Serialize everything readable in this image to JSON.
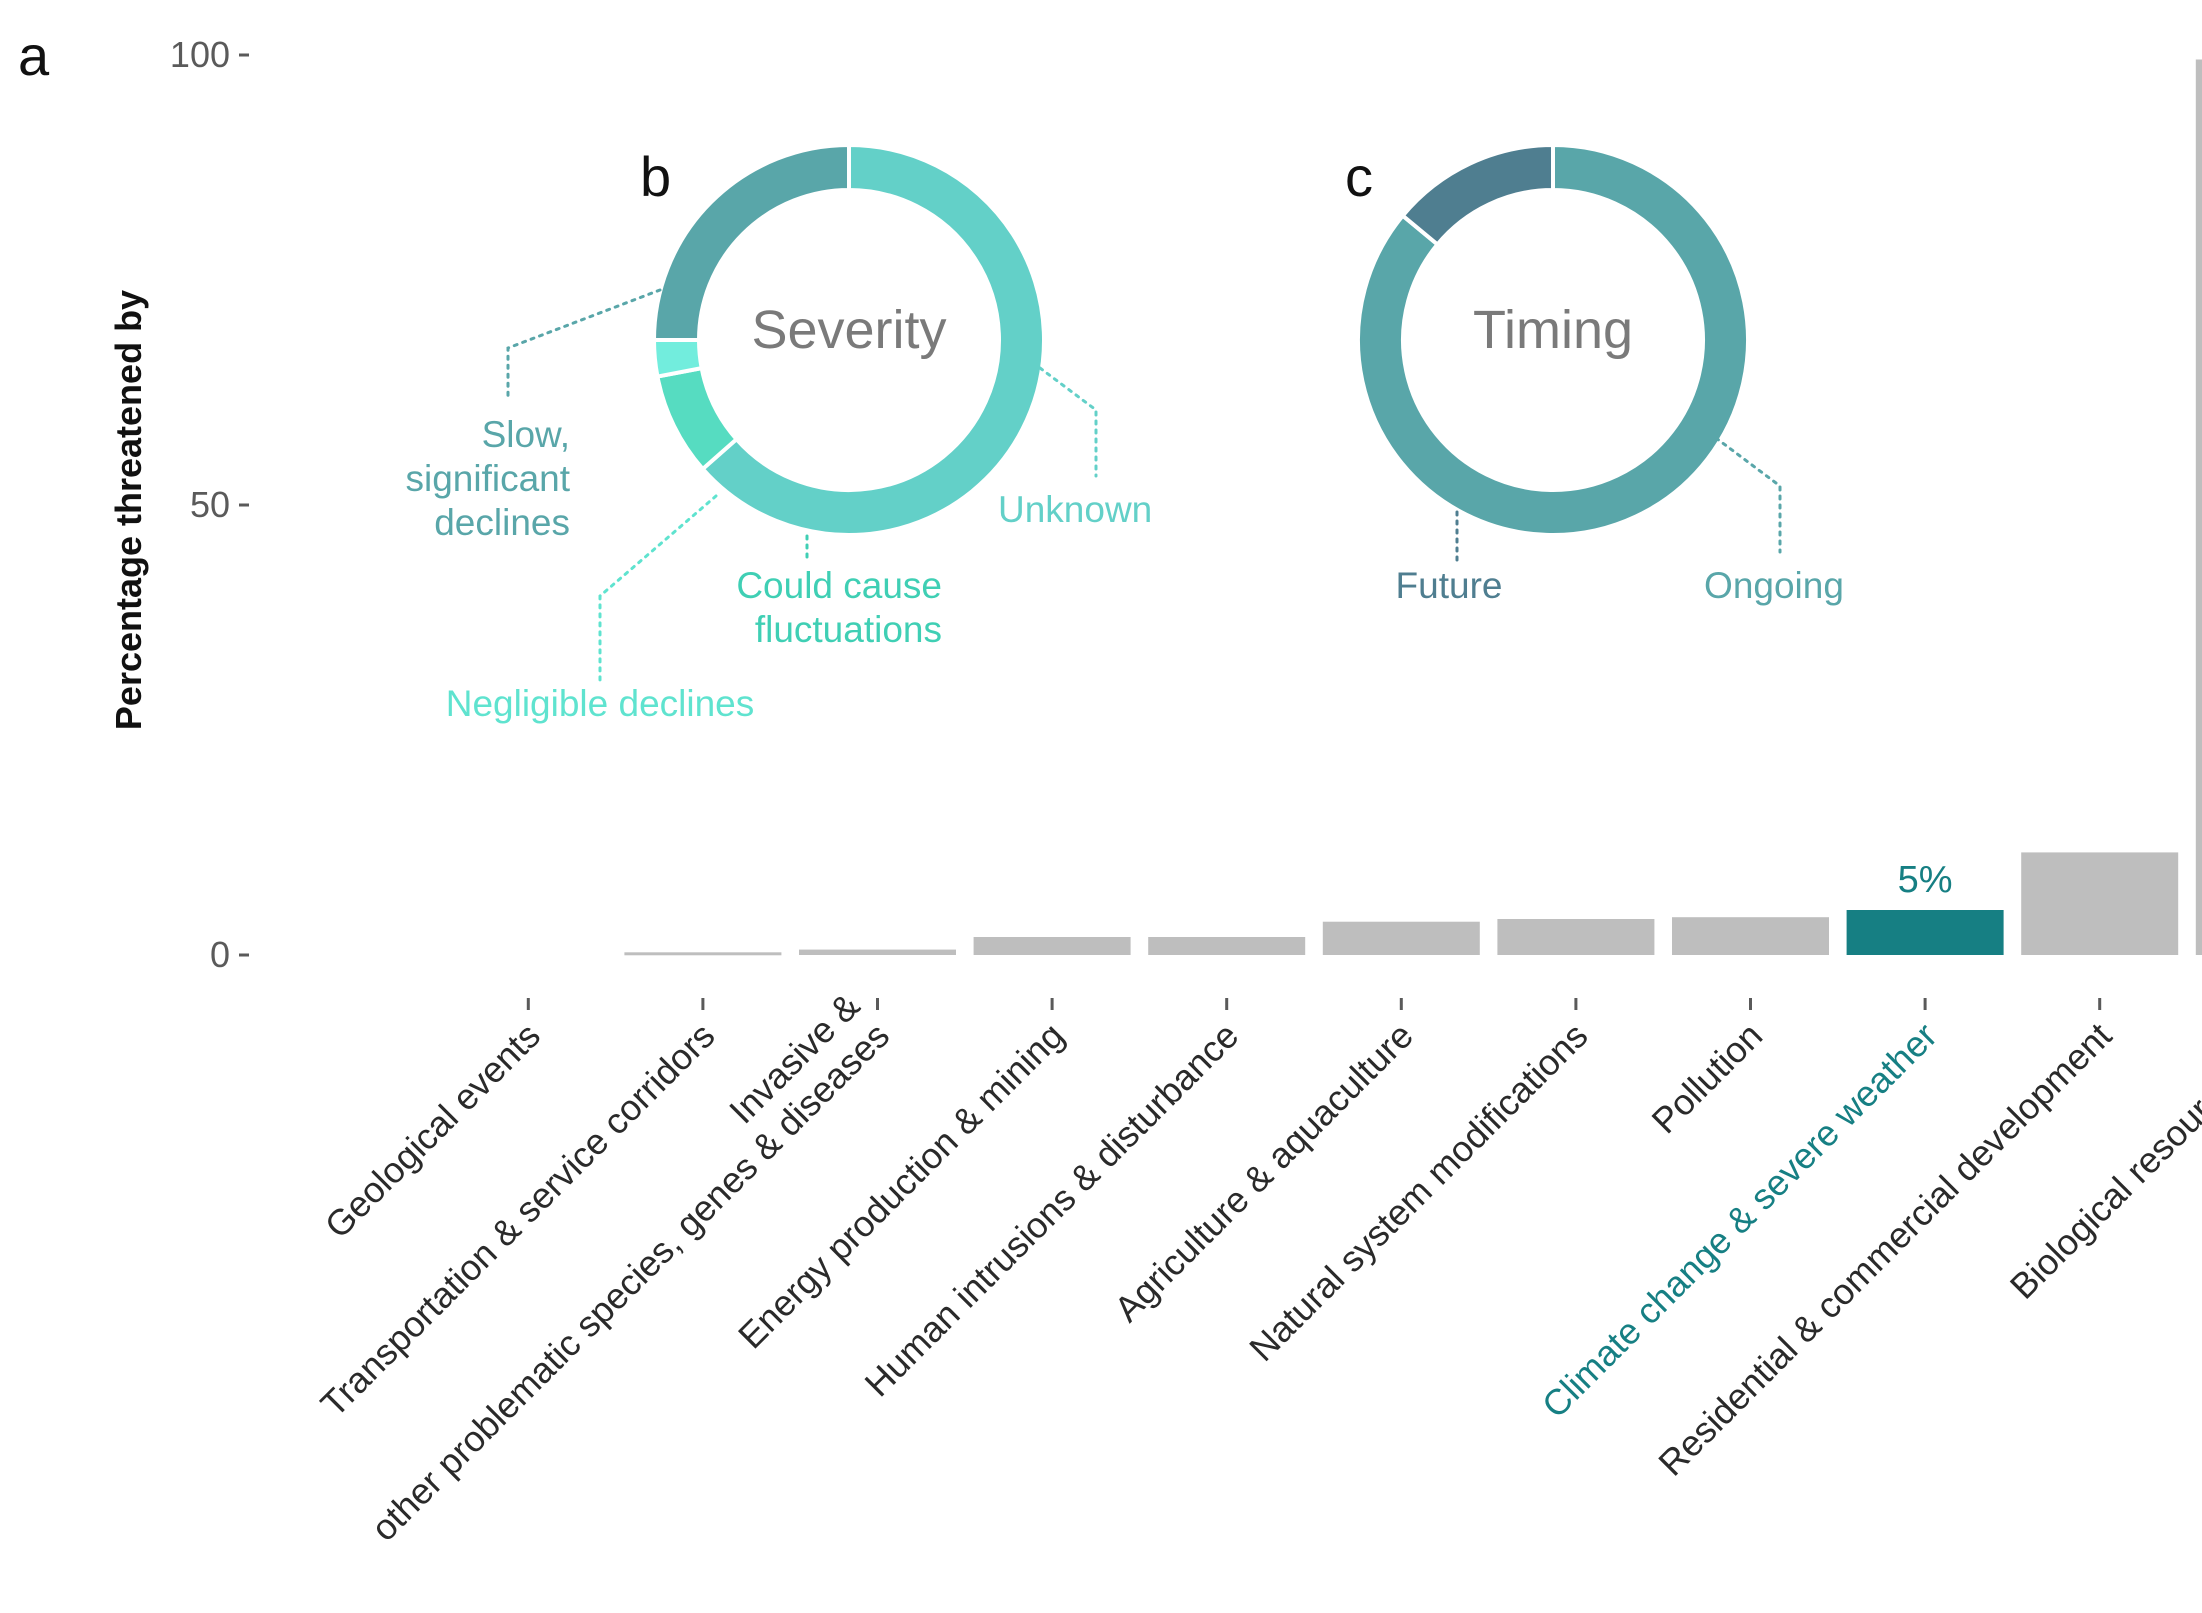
{
  "colors": {
    "bar_default": "#bebebe",
    "bar_highlight": "#167f83",
    "axis_tick": "#5a5a5a"
  },
  "chart_data": [
    {
      "panel": "a",
      "type": "bar",
      "title": "",
      "xlabel": "",
      "ylabel": "Percentage threatened by",
      "ylim": [
        0,
        100
      ],
      "yticks": [
        "0",
        "50",
        "100"
      ],
      "grid": false,
      "legend": "none",
      "categories": [
        "Geological events",
        "Transportation & service corridors",
        "Invasive &\nother problematic species, genes & diseases",
        "Energy production & mining",
        "Human intrusions & disturbance",
        "Agriculture & aquaculture",
        "Natural system modifications",
        "Pollution",
        "Climate change & severe weather",
        "Residential & commercial development",
        "Biological resource use"
      ],
      "values": [
        0,
        0.3,
        0.6,
        2.0,
        2.0,
        3.7,
        4.0,
        4.2,
        5,
        11.4,
        99.5
      ],
      "highlight_index": 8,
      "highlight_label": "5%"
    },
    {
      "panel": "b",
      "type": "pie",
      "center_label": "Severity",
      "slices": [
        {
          "label": "Unknown",
          "value": 0.635,
          "color": "#63d0c8"
        },
        {
          "label": "Could cause fluctuations",
          "value": 0.085,
          "color": "#56dcc1"
        },
        {
          "label": "Negligible declines",
          "value": 0.03,
          "color": "#72eddd"
        },
        {
          "label": "Slow, significant declines",
          "value": 0.25,
          "color": "#59a6a9"
        }
      ]
    },
    {
      "panel": "c",
      "type": "pie",
      "center_label": "Timing",
      "slices": [
        {
          "label": "Ongoing",
          "value": 0.86,
          "color": "#59a6a9"
        },
        {
          "label": "Future",
          "value": 0.14,
          "color": "#4f7e90"
        }
      ]
    }
  ]
}
